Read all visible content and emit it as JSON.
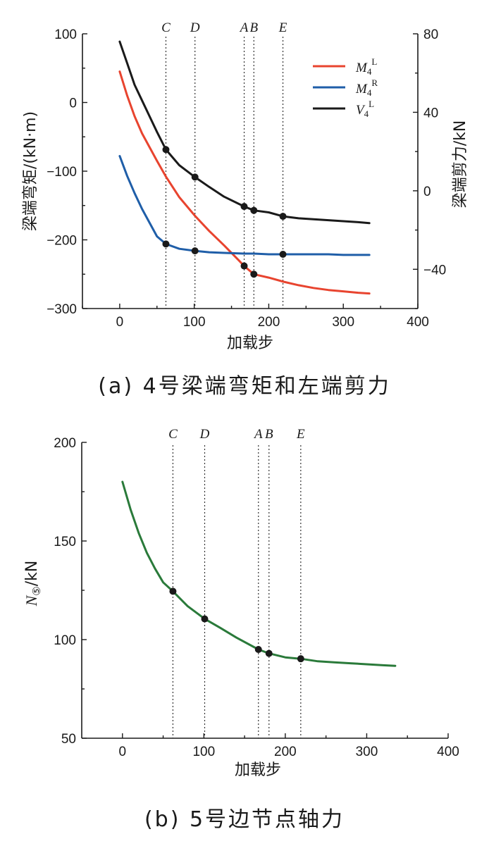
{
  "chart_data": [
    {
      "type": "line",
      "xlabel": "加载步",
      "ylabel": "梁端弯矩/(kN·m)",
      "y2label": "梁端剪力/kN",
      "caption": "(a) 4号梁端弯矩和左端剪力",
      "xlim": [
        -50,
        400
      ],
      "ylim": [
        -300,
        100
      ],
      "y2lim": [
        -60,
        80
      ],
      "xticks": [
        0,
        100,
        200,
        300,
        400
      ],
      "yticks": [
        -300,
        -200,
        -100,
        0,
        100
      ],
      "y2ticks": [
        -40,
        0,
        40,
        80
      ],
      "grid": false,
      "legend_position": "top-right",
      "vertical_markers": [
        {
          "label": "C",
          "x": 62
        },
        {
          "label": "D",
          "x": 101
        },
        {
          "label": "A",
          "x": 167
        },
        {
          "label": "B",
          "x": 180
        },
        {
          "label": "E",
          "x": 219
        }
      ],
      "series": [
        {
          "name": "M4L",
          "legend_main": "M",
          "legend_sub": "4",
          "legend_sup": "L",
          "axis": "left",
          "color": "#e8442f",
          "x": [
            0,
            10,
            20,
            30,
            40,
            50,
            62,
            80,
            101,
            120,
            140,
            160,
            167,
            180,
            200,
            220,
            240,
            260,
            280,
            300,
            320,
            335
          ],
          "y": [
            45,
            10,
            -20,
            -45,
            -65,
            -85,
            -108,
            -138,
            -165,
            -187,
            -208,
            -230,
            -238,
            -250,
            -255,
            -261,
            -266,
            -270,
            -273,
            -275,
            -277,
            -278
          ]
        },
        {
          "name": "M4R",
          "legend_main": "M",
          "legend_sub": "4",
          "legend_sup": "R",
          "axis": "left",
          "color": "#1f5ea8",
          "x": [
            0,
            10,
            20,
            30,
            40,
            50,
            62,
            80,
            101,
            120,
            140,
            167,
            180,
            200,
            219,
            240,
            260,
            280,
            300,
            320,
            335
          ],
          "y": [
            -78,
            -107,
            -132,
            -155,
            -175,
            -195,
            -206,
            -213,
            -216,
            -218,
            -219,
            -220,
            -220,
            -221,
            -221,
            -221,
            -221,
            -221,
            -222,
            -222,
            -222
          ]
        },
        {
          "name": "V4L",
          "legend_main": "V",
          "legend_sub": "4",
          "legend_sup": "L",
          "axis": "right",
          "color": "#1a1a1a",
          "x": [
            0,
            10,
            20,
            30,
            40,
            50,
            62,
            80,
            101,
            120,
            140,
            167,
            180,
            200,
            219,
            240,
            260,
            280,
            300,
            320,
            335
          ],
          "y": [
            76,
            65,
            54,
            46,
            38,
            30,
            21,
            13,
            7,
            2,
            -3,
            -8,
            -10,
            -11,
            -13,
            -14,
            -14.5,
            -15,
            -15.5,
            -16,
            -16.5
          ]
        }
      ],
      "points": [
        {
          "series": "V4L",
          "x": [
            62,
            101,
            167,
            180,
            219
          ],
          "y": [
            21,
            7,
            -8,
            -10,
            -13
          ]
        },
        {
          "series": "M4R",
          "x": [
            62,
            101,
            219
          ],
          "y": [
            -206,
            -216,
            -221
          ]
        },
        {
          "series": "M4L",
          "x": [
            167,
            180
          ],
          "y": [
            -238,
            -250
          ]
        }
      ]
    },
    {
      "type": "line",
      "xlabel": "加载步",
      "ylabel_main": "N",
      "ylabel_sub": "⑤",
      "ylabel_unit": "/kN",
      "caption": "(b) 5号边节点轴力",
      "xlim": [
        -50,
        400
      ],
      "ylim": [
        50,
        200
      ],
      "xticks": [
        0,
        100,
        200,
        300,
        400
      ],
      "yticks": [
        50,
        100,
        150,
        200
      ],
      "grid": false,
      "vertical_markers": [
        {
          "label": "C",
          "x": 62
        },
        {
          "label": "D",
          "x": 101
        },
        {
          "label": "A",
          "x": 167
        },
        {
          "label": "B",
          "x": 180
        },
        {
          "label": "E",
          "x": 219
        }
      ],
      "series": [
        {
          "name": "N5",
          "color": "#2a7a3a",
          "x": [
            0,
            10,
            20,
            30,
            40,
            50,
            62,
            80,
            101,
            120,
            140,
            167,
            180,
            200,
            219,
            240,
            260,
            280,
            300,
            320,
            335
          ],
          "y": [
            180,
            166,
            154,
            144,
            136,
            129,
            124.5,
            117,
            110.5,
            106,
            101,
            95,
            93,
            91,
            90.3,
            89,
            88.5,
            88,
            87.5,
            87,
            86.7
          ]
        }
      ],
      "points": [
        {
          "series": "N5",
          "x": [
            62,
            101,
            167,
            180,
            219
          ],
          "y": [
            124.5,
            110.5,
            95,
            93,
            90.3
          ]
        }
      ]
    }
  ]
}
